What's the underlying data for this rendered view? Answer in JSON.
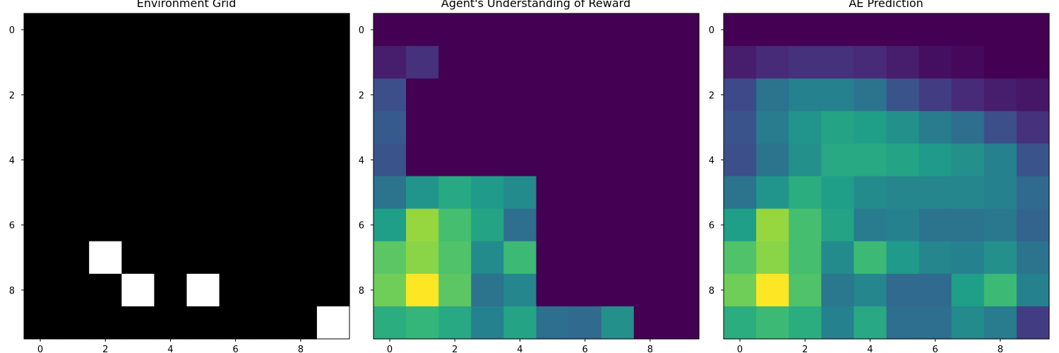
{
  "figure": {
    "background": "#ffffff",
    "panels": [
      {
        "title": "Environment Grid",
        "colormap": "gray"
      },
      {
        "title": "Agent's Understanding of Reward",
        "colormap": "viridis"
      },
      {
        "title": "AE Prediction",
        "colormap": "viridis"
      }
    ]
  },
  "chart_data": [
    {
      "type": "heatmap",
      "title": "Environment Grid",
      "colormap": "gray",
      "value_range": [
        0,
        1
      ],
      "x_ticks": [
        0,
        2,
        4,
        6,
        8
      ],
      "y_ticks": [
        0,
        2,
        4,
        6,
        8
      ],
      "grid": false,
      "values": [
        [
          0,
          0,
          0,
          0,
          0,
          0,
          0,
          0,
          0,
          0
        ],
        [
          0,
          0,
          0,
          0,
          0,
          0,
          0,
          0,
          0,
          0
        ],
        [
          0,
          0,
          0,
          0,
          0,
          0,
          0,
          0,
          0,
          0
        ],
        [
          0,
          0,
          0,
          0,
          0,
          0,
          0,
          0,
          0,
          0
        ],
        [
          0,
          0,
          0,
          0,
          0,
          0,
          0,
          0,
          0,
          0
        ],
        [
          0,
          0,
          0,
          0,
          0,
          0,
          0,
          0,
          0,
          0
        ],
        [
          0,
          0,
          0,
          0,
          0,
          0,
          0,
          0,
          0,
          0
        ],
        [
          0,
          0,
          1,
          0,
          0,
          0,
          0,
          0,
          0,
          0
        ],
        [
          0,
          0,
          0,
          1,
          0,
          1,
          0,
          0,
          0,
          0
        ],
        [
          0,
          0,
          0,
          0,
          0,
          0,
          0,
          0,
          0,
          1
        ]
      ]
    },
    {
      "type": "heatmap",
      "title": "Agent's Understanding of Reward",
      "colormap": "viridis",
      "value_range": [
        0,
        1
      ],
      "x_ticks": [
        0,
        2,
        4,
        6,
        8
      ],
      "y_ticks": [
        0,
        2,
        4,
        6,
        8
      ],
      "grid": false,
      "values": [
        [
          0,
          0,
          0,
          0,
          0,
          0,
          0,
          0,
          0,
          0
        ],
        [
          0.08,
          0.14,
          0,
          0,
          0,
          0,
          0,
          0,
          0,
          0
        ],
        [
          0.24,
          0,
          0,
          0,
          0,
          0,
          0,
          0,
          0,
          0
        ],
        [
          0.28,
          0,
          0,
          0,
          0,
          0,
          0,
          0,
          0,
          0
        ],
        [
          0.26,
          0,
          0,
          0,
          0,
          0,
          0,
          0,
          0,
          0
        ],
        [
          0.38,
          0.52,
          0.6,
          0.54,
          0.48,
          0,
          0,
          0,
          0,
          0
        ],
        [
          0.56,
          0.84,
          0.7,
          0.58,
          0.36,
          0,
          0,
          0,
          0,
          0
        ],
        [
          0.74,
          0.82,
          0.72,
          0.48,
          0.68,
          0,
          0,
          0,
          0,
          0
        ],
        [
          0.78,
          1.0,
          0.74,
          0.38,
          0.46,
          0,
          0,
          0,
          0,
          0
        ],
        [
          0.62,
          0.66,
          0.6,
          0.44,
          0.58,
          0.36,
          0.34,
          0.5,
          0,
          0
        ]
      ]
    },
    {
      "type": "heatmap",
      "title": "AE Prediction",
      "colormap": "viridis",
      "value_range": [
        0,
        1
      ],
      "x_ticks": [
        0,
        2,
        4,
        6,
        8
      ],
      "y_ticks": [
        0,
        2,
        4,
        6,
        8
      ],
      "grid": false,
      "values": [
        [
          0,
          0,
          0,
          0,
          0,
          0,
          0,
          0,
          0,
          0
        ],
        [
          0.08,
          0.12,
          0.14,
          0.14,
          0.12,
          0.08,
          0.04,
          0.02,
          0,
          0
        ],
        [
          0.22,
          0.38,
          0.44,
          0.44,
          0.38,
          0.26,
          0.18,
          0.12,
          0.08,
          0.06
        ],
        [
          0.26,
          0.42,
          0.52,
          0.58,
          0.56,
          0.5,
          0.42,
          0.36,
          0.24,
          0.14
        ],
        [
          0.24,
          0.38,
          0.5,
          0.6,
          0.6,
          0.58,
          0.54,
          0.5,
          0.44,
          0.26
        ],
        [
          0.38,
          0.52,
          0.62,
          0.56,
          0.48,
          0.46,
          0.46,
          0.46,
          0.44,
          0.34
        ],
        [
          0.56,
          0.84,
          0.7,
          0.58,
          0.42,
          0.44,
          0.38,
          0.38,
          0.4,
          0.32
        ],
        [
          0.72,
          0.82,
          0.7,
          0.48,
          0.68,
          0.54,
          0.46,
          0.44,
          0.5,
          0.38
        ],
        [
          0.78,
          1.0,
          0.72,
          0.4,
          0.46,
          0.34,
          0.34,
          0.56,
          0.68,
          0.44
        ],
        [
          0.62,
          0.68,
          0.62,
          0.44,
          0.6,
          0.36,
          0.36,
          0.48,
          0.42,
          0.18
        ]
      ]
    }
  ]
}
